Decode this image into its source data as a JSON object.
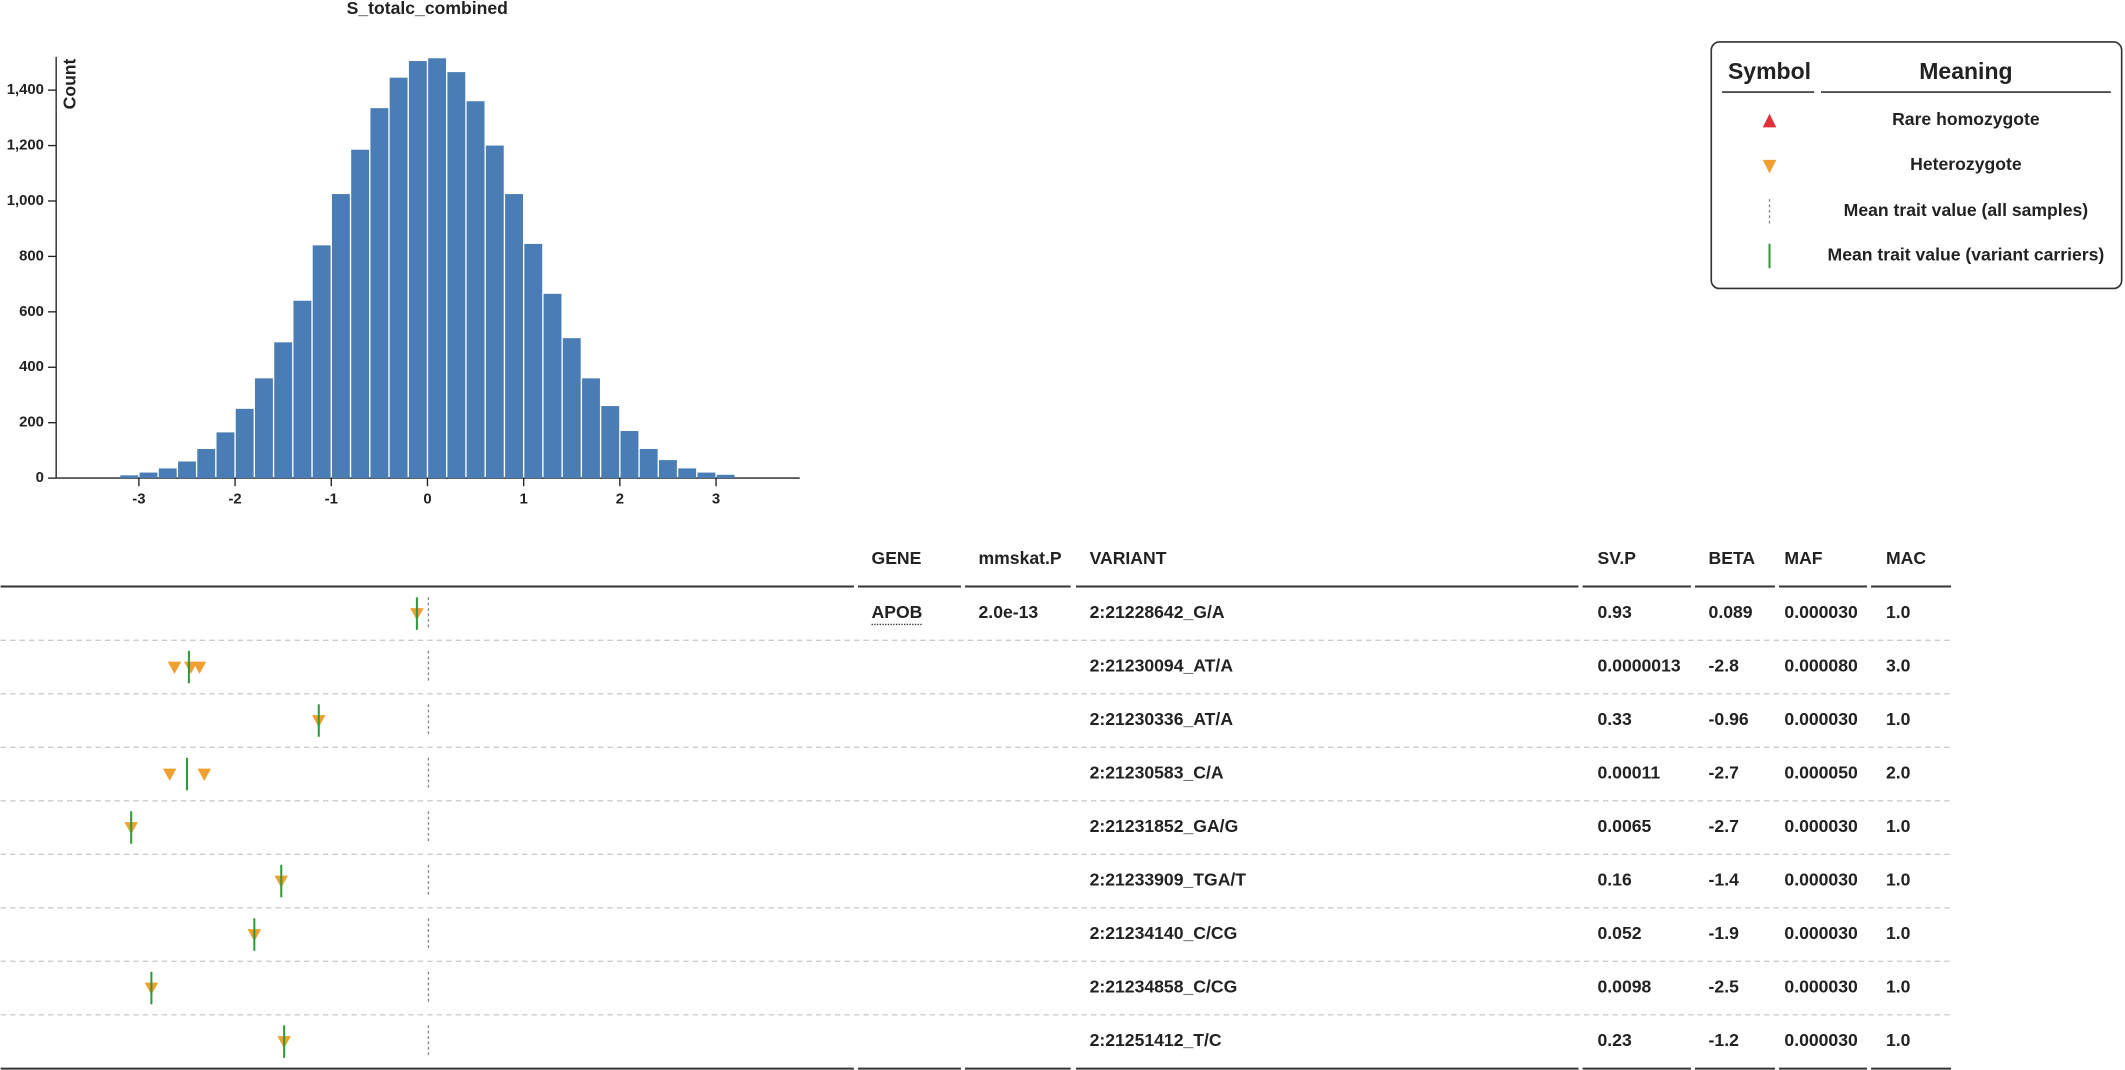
{
  "chart_data": [
    {
      "type": "histogram",
      "title": "S_totalc_combined",
      "y_label": "Count",
      "bins": [
        -3.2,
        -3.0,
        -2.8,
        -2.6,
        -2.4,
        -2.2,
        -2.0,
        -1.8,
        -1.6,
        -1.4,
        -1.2,
        -1.0,
        -0.8,
        -0.6,
        -0.4,
        -0.2,
        0.0,
        0.2,
        0.4,
        0.6,
        0.8,
        1.0,
        1.2,
        1.4,
        1.6,
        1.8,
        2.0,
        2.2,
        2.4,
        2.6,
        2.8,
        3.0,
        3.2
      ],
      "counts": [
        10,
        20,
        35,
        60,
        105,
        165,
        250,
        360,
        490,
        640,
        840,
        1025,
        1185,
        1335,
        1445,
        1505,
        1515,
        1465,
        1360,
        1200,
        1025,
        845,
        665,
        505,
        360,
        260,
        170,
        105,
        65,
        35,
        20,
        12
      ],
      "color": "#4a7db5",
      "xlim": [
        -3.86,
        3.87
      ],
      "xticks": [
        -3,
        -2,
        -1,
        0,
        1,
        2,
        3
      ],
      "ylim": [
        0,
        1520
      ],
      "yticks": [
        0,
        200,
        400,
        600,
        800,
        {
          "value": 1000,
          "label": "1,000"
        },
        {
          "value": 1200,
          "label": "1,200"
        },
        {
          "value": 1400,
          "label": "1,400"
        }
      ]
    },
    {
      "type": "strip",
      "xlim": [
        -3.86,
        3.87
      ],
      "mean_all": 0.01,
      "het_color": "#f0a030",
      "mean_color": "#2e9a3a",
      "rows": [
        {
          "values": [
            -0.11
          ],
          "carrier_mean": -0.11
        },
        {
          "values": [
            -2.63,
            -2.46,
            -2.37
          ],
          "carrier_mean": -2.48
        },
        {
          "values": [
            -1.13
          ],
          "carrier_mean": -1.13
        },
        {
          "values": [
            -2.68,
            -2.32
          ],
          "carrier_mean": -2.5
        },
        {
          "values": [
            -3.08
          ],
          "carrier_mean": -3.08
        },
        {
          "values": [
            -1.52
          ],
          "carrier_mean": -1.52
        },
        {
          "values": [
            -1.8
          ],
          "carrier_mean": -1.8
        },
        {
          "values": [
            -2.87
          ],
          "carrier_mean": -2.87
        },
        {
          "values": [
            -1.49
          ],
          "carrier_mean": -1.49
        }
      ]
    }
  ],
  "legend": {
    "headers": [
      "Symbol",
      "Meaning"
    ],
    "items": [
      "Rare homozygote",
      "Heterozygote",
      "Mean trait value (all samples)",
      "Mean trait value (variant carriers)"
    ]
  },
  "table": {
    "headers": [
      "GENE",
      "mmskat.P",
      "VARIANT",
      "SV.P",
      "BETA",
      "MAF",
      "MAC"
    ],
    "rows": [
      [
        "APOB",
        "2.0e-13",
        "2:21228642_G/A",
        "0.93",
        "0.089",
        "0.000030",
        "1.0"
      ],
      [
        null,
        null,
        "2:21230094_AT/A",
        "0.0000013",
        "-2.8",
        "0.000080",
        "3.0"
      ],
      [
        null,
        null,
        "2:21230336_AT/A",
        "0.33",
        "-0.96",
        "0.000030",
        "1.0"
      ],
      [
        null,
        null,
        "2:21230583_C/A",
        "0.00011",
        "-2.7",
        "0.000050",
        "2.0"
      ],
      [
        null,
        null,
        "2:21231852_GA/G",
        "0.0065",
        "-2.7",
        "0.000030",
        "1.0"
      ],
      [
        null,
        null,
        "2:21233909_TGA/T",
        "0.16",
        "-1.4",
        "0.000030",
        "1.0"
      ],
      [
        null,
        null,
        "2:21234140_C/CG",
        "0.052",
        "-1.9",
        "0.000030",
        "1.0"
      ],
      [
        null,
        null,
        "2:21234858_C/CG",
        "0.0098",
        "-2.5",
        "0.000030",
        "1.0"
      ],
      [
        null,
        null,
        "2:21251412_T/C",
        "0.23",
        "-1.2",
        "0.000030",
        "1.0"
      ]
    ]
  }
}
